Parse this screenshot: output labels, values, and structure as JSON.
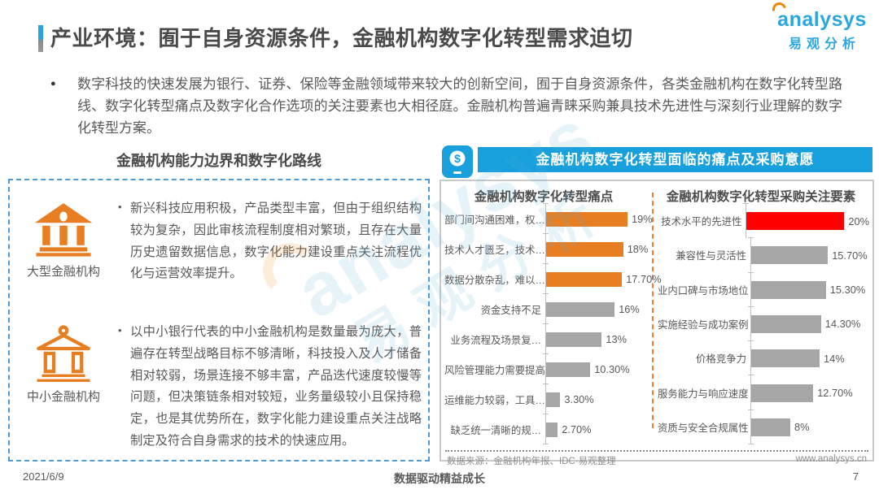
{
  "page": {
    "title": "产业环境：囿于自身资源条件，金融机构数字化转型需求迫切",
    "intro": "数字科技的快速发展为银行、证券、保险等金融领域带来较大的创新空间，囿于自身资源条件，各类金融机构在数字化转型路线、数字化转型痛点及数字化合作选项的关注要素也大相径庭。金融机构普遍青睐采购兼具技术先进性与深刻行业理解的数字化转型方案。"
  },
  "logo": {
    "brand": "analysys",
    "brand_cn": "易观分析"
  },
  "watermark": {
    "brand": "analysys",
    "brand_cn": "易观分析"
  },
  "left_panel": {
    "title": "金融机构能力边界和数字化路线",
    "items": [
      {
        "label": "大型金融机构",
        "icon": "bank-solid-icon",
        "text": "新兴科技应用积极，产品类型丰富，但由于组织结构较为复杂，因此审核流程制度相对繁琐，且存在大量历史遗留数据信息，数字化能力建设重点关注流程优化与运营效率提升。"
      },
      {
        "label": "中小金融机构",
        "icon": "bank-outline-icon",
        "text": "以中小银行代表的中小金融机构是数量最为庞大，普遍存在转型战略目标不够清晰，科技投入及人才储备相对较弱，场景连接不够丰富，产品迭代速度较慢等问题，但决策链条相对较短，业务量级较小且保持稳定，也是其优势所在，数字化能力建设重点关注战略制定及符合自身需求的技术的快速应用。"
      }
    ]
  },
  "right_panel": {
    "header": "金融机构数字化转型面临的痛点及采购意愿",
    "source": "数据来源：金融机构年报、IDC·易观整理",
    "website": "www.analysys.cn"
  },
  "chart_data": [
    {
      "type": "bar",
      "orientation": "horizontal",
      "title": "金融机构数字化转型痛点",
      "categories": [
        "部门间沟通困难，权…",
        "技术人才匮乏，技术…",
        "数据分散杂乱，难以…",
        "资金支持不足",
        "业务流程及场景复…",
        "风险管理能力需要提高",
        "运维能力较弱，工具…",
        "缺乏统一清晰的规…"
      ],
      "values": [
        19,
        18,
        17.7,
        16,
        13,
        10.3,
        3.3,
        2.7
      ],
      "value_labels": [
        "19%",
        "18%",
        "17.70%",
        "16%",
        "13%",
        "10.30%",
        "3.30%",
        "2.70%"
      ],
      "bar_colors": [
        "#e87e22",
        "#e87e22",
        "#e87e22",
        "#a6a6a6",
        "#a6a6a6",
        "#a6a6a6",
        "#a6a6a6",
        "#a6a6a6"
      ],
      "xlim": [
        0,
        20
      ],
      "grid": false,
      "legend": "none"
    },
    {
      "type": "bar",
      "orientation": "horizontal",
      "title": "金融机构数字化转型采购关注要素",
      "categories": [
        "技术水平的先进性",
        "兼容性与灵活性",
        "业内口碑与市场地位",
        "实施经验与成功案例",
        "价格竞争力",
        "服务能力与响应速度",
        "资质与安全合规属性"
      ],
      "values": [
        20,
        15.7,
        15.3,
        14.3,
        14,
        12.7,
        8
      ],
      "value_labels": [
        "20%",
        "15.70%",
        "15.30%",
        "14.30%",
        "14%",
        "12.70%",
        "8%"
      ],
      "bar_colors": [
        "#fe0000",
        "#a6a6a6",
        "#a6a6a6",
        "#a6a6a6",
        "#a6a6a6",
        "#a6a6a6",
        "#a6a6a6"
      ],
      "xlim": [
        0,
        21
      ],
      "grid": false,
      "legend": "none"
    }
  ],
  "colors": {
    "accent_blue": "#18a0dc",
    "accent_orange": "#e87e22",
    "bar_gray": "#a6a6a6",
    "bar_red": "#fe0000",
    "dashed_border_blue": "#4f9bd5"
  },
  "footer": {
    "date": "2021/6/9",
    "slogan": "数据驱动精益成长",
    "page_number": "7"
  }
}
